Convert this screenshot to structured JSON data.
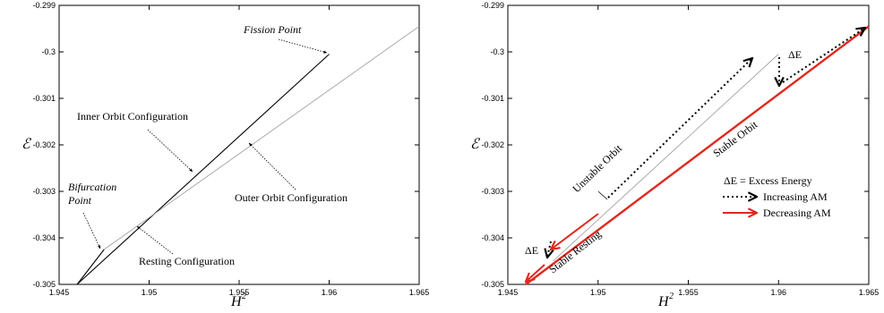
{
  "chart_data": [
    {
      "type": "line",
      "title": "",
      "xlabel": "H",
      "xlabel_sup": "2",
      "ylabel": "ℰ",
      "xlim": [
        1.945,
        1.965
      ],
      "ylim": [
        -0.305,
        -0.299
      ],
      "xticks": [
        "1.945",
        "1.95",
        "1.955",
        "1.96",
        "1.965"
      ],
      "yticks": [
        "-0.299",
        "-0.3",
        "-0.301",
        "-0.302",
        "-0.303",
        "-0.304",
        "-0.305"
      ],
      "grid": false,
      "series": [
        {
          "id": "inner",
          "color": "#000000",
          "x": [
            1.946,
            1.96
          ],
          "y": [
            -0.305,
            -0.30005
          ]
        },
        {
          "id": "outer",
          "color": "#999999",
          "x": [
            1.9475,
            1.965
          ],
          "y": [
            -0.30425,
            -0.29945
          ]
        },
        {
          "id": "outer-lower",
          "color": "#000000",
          "x": [
            1.946,
            1.9475
          ],
          "y": [
            -0.305,
            -0.30425
          ]
        }
      ],
      "annotations": {
        "fission": {
          "text": "Fission Point",
          "italic": true
        },
        "inner": {
          "text": "Inner Orbit Configuration"
        },
        "bifurcation_1": {
          "text": "Bifurcation",
          "italic": true
        },
        "bifurcation_2": {
          "text": "Point",
          "italic": true
        },
        "outer": {
          "text": "Outer Orbit Configuration"
        },
        "resting": {
          "text": "Resting Configuration"
        }
      }
    },
    {
      "type": "line",
      "title": "",
      "xlabel": "H",
      "xlabel_sup": "2",
      "ylabel": "ℰ",
      "xlim": [
        1.945,
        1.965
      ],
      "ylim": [
        -0.305,
        -0.299
      ],
      "xticks": [
        "1.945",
        "1.95",
        "1.955",
        "1.96",
        "1.965"
      ],
      "yticks": [
        "-0.299",
        "-0.3",
        "-0.301",
        "-0.302",
        "-0.303",
        "-0.304",
        "-0.305"
      ],
      "grid": false,
      "series": [
        {
          "id": "unstable",
          "color": "#999999",
          "x": [
            1.9475,
            1.96
          ],
          "y": [
            -0.3045,
            -0.30005
          ]
        },
        {
          "id": "stable",
          "color": "#e0281c",
          "x": [
            1.946,
            1.965
          ],
          "y": [
            -0.305,
            -0.29945
          ]
        }
      ],
      "annotations": {
        "unstable": {
          "text": "Unstable Orbit"
        },
        "stable": {
          "text": "Stable Orbit"
        },
        "stable_resting": {
          "text": "Stable Resting"
        },
        "de_top": {
          "text": "ΔE"
        },
        "de_bottom": {
          "text": "ΔE"
        }
      },
      "legend": {
        "placement": "lower-right",
        "title": "ΔE = Excess Energy",
        "items": [
          {
            "label": "Increasing AM",
            "color": "#000000",
            "style": "dotted"
          },
          {
            "label": "Decreasing AM",
            "color": "#e0281c",
            "style": "solid"
          }
        ]
      }
    }
  ]
}
